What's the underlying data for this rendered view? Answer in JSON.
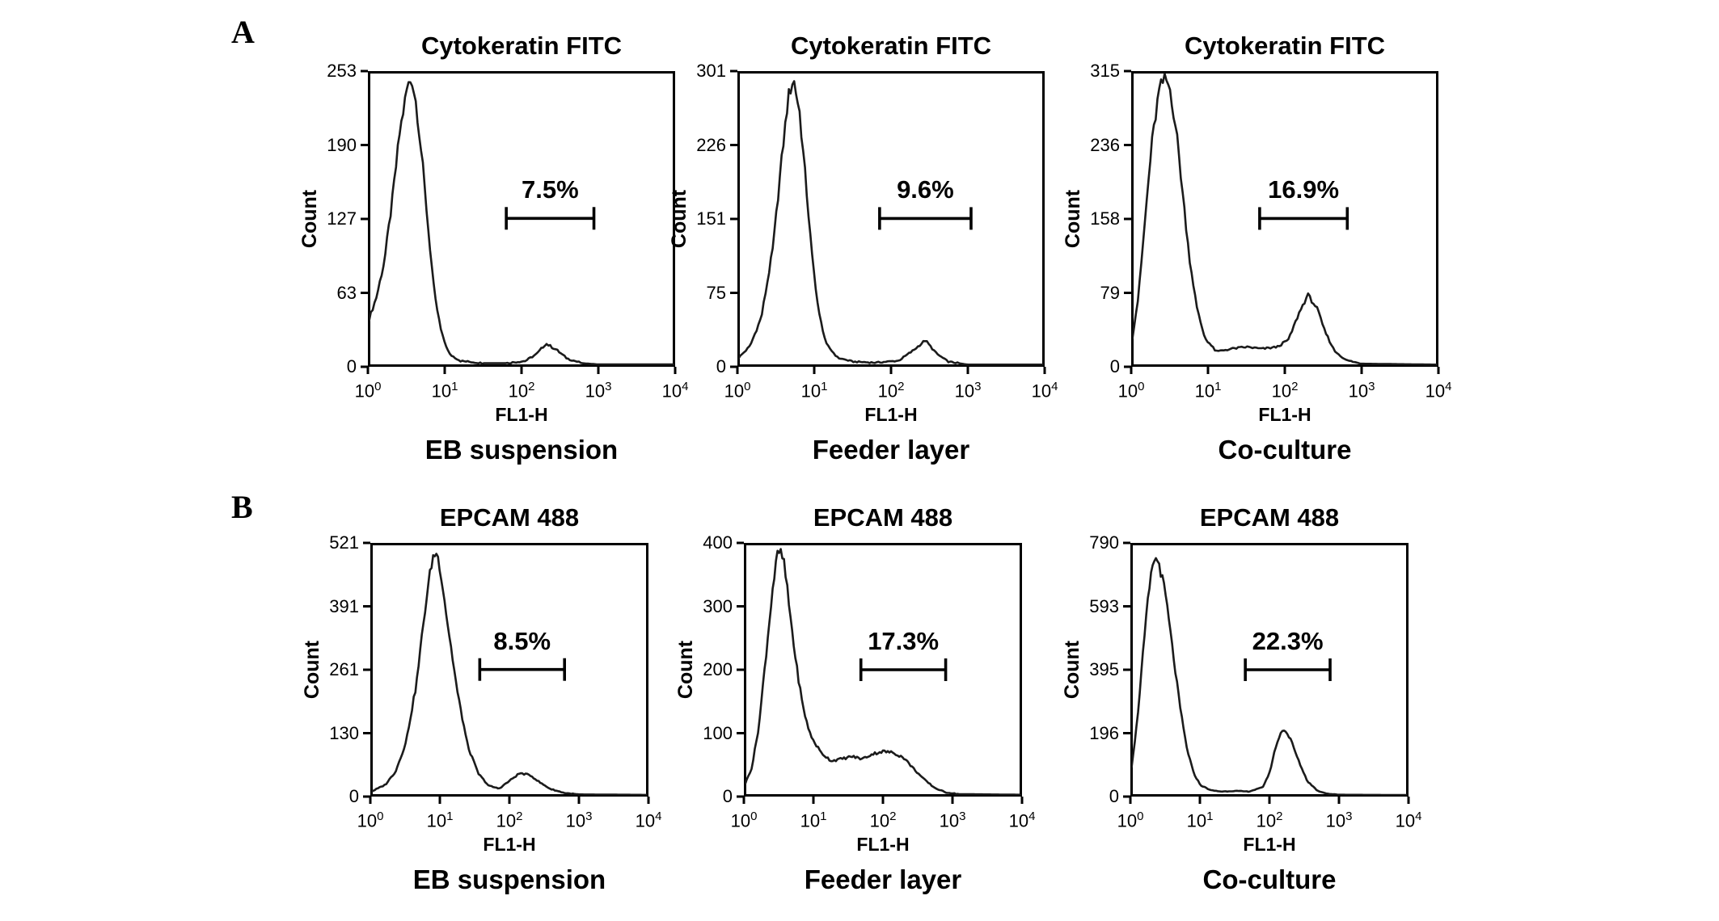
{
  "figure": {
    "panels": [
      {
        "label": "A"
      },
      {
        "label": "B"
      }
    ],
    "colors": {
      "ink": "#000000",
      "curve": "#1b1b1b",
      "background": "#ffffff"
    }
  },
  "chart_data": [
    {
      "panel": "A",
      "type": "line",
      "title": "Cytokeratin FITC",
      "condition": "EB suspension",
      "xlabel": "FL1-H",
      "ylabel": "Count",
      "x_scale": "log10",
      "x_range_decades": [
        0,
        4
      ],
      "x_tick_base": "10",
      "x_tick_exponents": [
        "0",
        "1",
        "2",
        "3",
        "4"
      ],
      "ylim": [
        0,
        253
      ],
      "y_ticks": [
        "253",
        "190",
        "127",
        "63",
        "0"
      ],
      "gate": {
        "label": "7.5%",
        "x1_decade": 1.8,
        "x2_decade": 2.95,
        "y_count": 127
      },
      "curve_points": [
        [
          0,
          40
        ],
        [
          0.1,
          60
        ],
        [
          0.2,
          90
        ],
        [
          0.3,
          140
        ],
        [
          0.4,
          200
        ],
        [
          0.5,
          240
        ],
        [
          0.56,
          248
        ],
        [
          0.62,
          225
        ],
        [
          0.7,
          175
        ],
        [
          0.78,
          115
        ],
        [
          0.86,
          60
        ],
        [
          0.95,
          28
        ],
        [
          1.05,
          10
        ],
        [
          1.2,
          4
        ],
        [
          1.5,
          2
        ],
        [
          1.8,
          2
        ],
        [
          2.05,
          4
        ],
        [
          2.2,
          10
        ],
        [
          2.32,
          19
        ],
        [
          2.45,
          14
        ],
        [
          2.6,
          6
        ],
        [
          2.8,
          2
        ],
        [
          3.0,
          1
        ],
        [
          4.0,
          1
        ]
      ]
    },
    {
      "panel": "A",
      "type": "line",
      "title": "Cytokeratin FITC",
      "condition": "Feeder layer",
      "xlabel": "FL1-H",
      "ylabel": "Count",
      "x_scale": "log10",
      "x_range_decades": [
        0,
        4
      ],
      "x_tick_base": "10",
      "x_tick_exponents": [
        "0",
        "1",
        "2",
        "3",
        "4"
      ],
      "ylim": [
        0,
        301
      ],
      "y_ticks": [
        "301",
        "226",
        "151",
        "75",
        "0"
      ],
      "gate": {
        "label": "9.6%",
        "x1_decade": 1.85,
        "x2_decade": 3.05,
        "y_count": 151
      },
      "curve_points": [
        [
          0,
          8
        ],
        [
          0.15,
          20
        ],
        [
          0.3,
          50
        ],
        [
          0.45,
          120
        ],
        [
          0.55,
          200
        ],
        [
          0.65,
          275
        ],
        [
          0.72,
          295
        ],
        [
          0.8,
          260
        ],
        [
          0.88,
          190
        ],
        [
          0.96,
          115
        ],
        [
          1.05,
          55
        ],
        [
          1.15,
          22
        ],
        [
          1.3,
          8
        ],
        [
          1.5,
          4
        ],
        [
          1.8,
          3
        ],
        [
          2.1,
          5
        ],
        [
          2.3,
          16
        ],
        [
          2.45,
          26
        ],
        [
          2.6,
          12
        ],
        [
          2.75,
          4
        ],
        [
          3.0,
          1
        ],
        [
          4.0,
          1
        ]
      ]
    },
    {
      "panel": "A",
      "type": "line",
      "title": "Cytokeratin FITC",
      "condition": "Co-culture",
      "xlabel": "FL1-H",
      "ylabel": "Count",
      "x_scale": "log10",
      "x_range_decades": [
        0,
        4
      ],
      "x_tick_base": "10",
      "x_tick_exponents": [
        "0",
        "1",
        "2",
        "3",
        "4"
      ],
      "ylim": [
        0,
        315
      ],
      "y_ticks": [
        "315",
        "236",
        "158",
        "79",
        "0"
      ],
      "gate": {
        "label": "16.9%",
        "x1_decade": 1.67,
        "x2_decade": 2.82,
        "y_count": 158
      },
      "curve_points": [
        [
          0,
          30
        ],
        [
          0.08,
          75
        ],
        [
          0.16,
          150
        ],
        [
          0.25,
          235
        ],
        [
          0.35,
          295
        ],
        [
          0.43,
          310
        ],
        [
          0.5,
          295
        ],
        [
          0.58,
          250
        ],
        [
          0.66,
          185
        ],
        [
          0.75,
          115
        ],
        [
          0.85,
          60
        ],
        [
          0.95,
          30
        ],
        [
          1.1,
          15
        ],
        [
          1.3,
          18
        ],
        [
          1.5,
          20
        ],
        [
          1.7,
          18
        ],
        [
          1.9,
          20
        ],
        [
          2.05,
          28
        ],
        [
          2.18,
          55
        ],
        [
          2.3,
          76
        ],
        [
          2.42,
          62
        ],
        [
          2.52,
          38
        ],
        [
          2.65,
          16
        ],
        [
          2.8,
          6
        ],
        [
          3.0,
          2
        ],
        [
          4.0,
          1
        ]
      ]
    },
    {
      "panel": "B",
      "type": "line",
      "title": "EPCAM 488",
      "condition": "EB suspension",
      "xlabel": "FL1-H",
      "ylabel": "Count",
      "x_scale": "log10",
      "x_range_decades": [
        0,
        4
      ],
      "x_tick_base": "10",
      "x_tick_exponents": [
        "0",
        "1",
        "2",
        "3",
        "4"
      ],
      "ylim": [
        0,
        521
      ],
      "y_ticks": [
        "521",
        "391",
        "261",
        "130",
        "0"
      ],
      "gate": {
        "label": "8.5%",
        "x1_decade": 1.57,
        "x2_decade": 2.8,
        "y_count": 261
      },
      "curve_points": [
        [
          0,
          8
        ],
        [
          0.2,
          22
        ],
        [
          0.35,
          50
        ],
        [
          0.5,
          110
        ],
        [
          0.65,
          230
        ],
        [
          0.78,
          390
        ],
        [
          0.88,
          490
        ],
        [
          0.94,
          505
        ],
        [
          1.0,
          470
        ],
        [
          1.1,
          360
        ],
        [
          1.25,
          210
        ],
        [
          1.4,
          100
        ],
        [
          1.55,
          45
        ],
        [
          1.7,
          20
        ],
        [
          1.85,
          14
        ],
        [
          2.0,
          30
        ],
        [
          2.15,
          46
        ],
        [
          2.3,
          42
        ],
        [
          2.45,
          26
        ],
        [
          2.6,
          13
        ],
        [
          2.8,
          5
        ],
        [
          3.0,
          2
        ],
        [
          4.0,
          1
        ]
      ]
    },
    {
      "panel": "B",
      "type": "line",
      "title": "EPCAM 488",
      "condition": "Feeder layer",
      "xlabel": "FL1-H",
      "ylabel": "Count",
      "x_scale": "log10",
      "x_range_decades": [
        0,
        4
      ],
      "x_tick_base": "10",
      "x_tick_exponents": [
        "0",
        "1",
        "2",
        "3",
        "4"
      ],
      "ylim": [
        0,
        400
      ],
      "y_ticks": [
        "400",
        "300",
        "200",
        "100",
        "0"
      ],
      "gate": {
        "label": "17.3%",
        "x1_decade": 1.68,
        "x2_decade": 2.91,
        "y_count": 200
      },
      "curve_points": [
        [
          0,
          18
        ],
        [
          0.1,
          45
        ],
        [
          0.2,
          110
        ],
        [
          0.3,
          220
        ],
        [
          0.4,
          330
        ],
        [
          0.48,
          390
        ],
        [
          0.56,
          375
        ],
        [
          0.64,
          300
        ],
        [
          0.74,
          210
        ],
        [
          0.84,
          140
        ],
        [
          0.95,
          95
        ],
        [
          1.1,
          68
        ],
        [
          1.25,
          55
        ],
        [
          1.4,
          58
        ],
        [
          1.55,
          62
        ],
        [
          1.7,
          58
        ],
        [
          1.85,
          66
        ],
        [
          2.0,
          70
        ],
        [
          2.15,
          68
        ],
        [
          2.3,
          60
        ],
        [
          2.45,
          42
        ],
        [
          2.6,
          25
        ],
        [
          2.75,
          12
        ],
        [
          2.9,
          5
        ],
        [
          3.1,
          2
        ],
        [
          4.0,
          1
        ]
      ]
    },
    {
      "panel": "B",
      "type": "line",
      "title": "EPCAM 488",
      "condition": "Co-culture",
      "xlabel": "FL1-H",
      "ylabel": "Count",
      "x_scale": "log10",
      "x_range_decades": [
        0,
        4
      ],
      "x_tick_base": "10",
      "x_tick_exponents": [
        "0",
        "1",
        "2",
        "3",
        "4"
      ],
      "ylim": [
        0,
        790
      ],
      "y_ticks": [
        "790",
        "593",
        "395",
        "196",
        "0"
      ],
      "gate": {
        "label": "22.3%",
        "x1_decade": 1.65,
        "x2_decade": 2.88,
        "y_count": 395
      },
      "curve_points": [
        [
          0,
          90
        ],
        [
          0.08,
          230
        ],
        [
          0.16,
          430
        ],
        [
          0.24,
          620
        ],
        [
          0.32,
          745
        ],
        [
          0.4,
          730
        ],
        [
          0.5,
          620
        ],
        [
          0.6,
          450
        ],
        [
          0.7,
          280
        ],
        [
          0.8,
          150
        ],
        [
          0.9,
          70
        ],
        [
          1.0,
          32
        ],
        [
          1.15,
          16
        ],
        [
          1.3,
          12
        ],
        [
          1.5,
          14
        ],
        [
          1.7,
          12
        ],
        [
          1.9,
          25
        ],
        [
          2.0,
          70
        ],
        [
          2.1,
          160
        ],
        [
          2.2,
          212
        ],
        [
          2.3,
          180
        ],
        [
          2.42,
          110
        ],
        [
          2.55,
          45
        ],
        [
          2.7,
          14
        ],
        [
          2.85,
          5
        ],
        [
          3.0,
          2
        ],
        [
          4.0,
          1
        ]
      ]
    }
  ]
}
